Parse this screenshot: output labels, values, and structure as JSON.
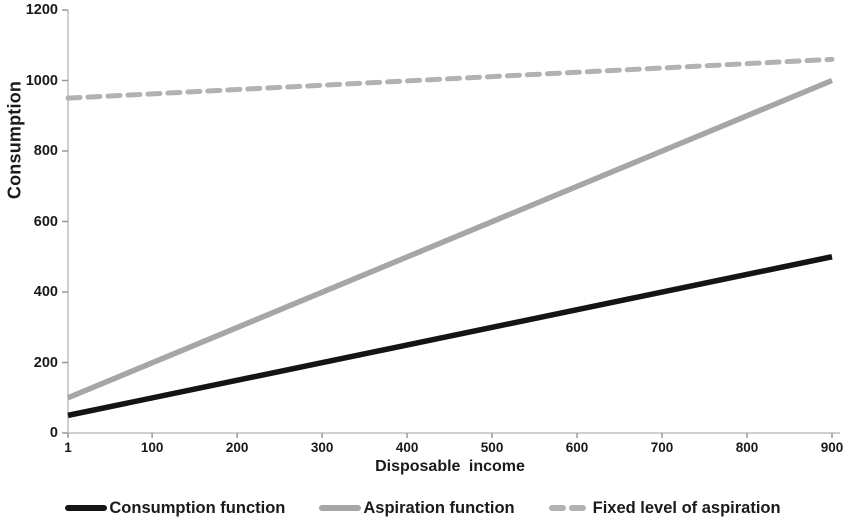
{
  "chart_data": {
    "type": "line",
    "title": "",
    "xlabel": "Disposable income",
    "ylabel": "Consumption",
    "xlim": [
      1,
      900
    ],
    "ylim": [
      0,
      1200
    ],
    "x_ticks": [
      1,
      100,
      200,
      300,
      400,
      500,
      600,
      700,
      800,
      900
    ],
    "y_ticks": [
      0,
      200,
      400,
      600,
      800,
      1000,
      1200
    ],
    "grid": false,
    "legend_position": "bottom",
    "axis_color": "#bfbfbf",
    "tick_color": "#999999",
    "series": [
      {
        "name": "Consumption function",
        "style": "solid",
        "color": "#141414",
        "width": 5.5,
        "points": [
          [
            1,
            50
          ],
          [
            900,
            500
          ]
        ]
      },
      {
        "name": "Aspiration function",
        "style": "solid",
        "color": "#a6a6a6",
        "width": 5.5,
        "points": [
          [
            1,
            100
          ],
          [
            900,
            1000
          ]
        ]
      },
      {
        "name": "Fixed level of aspiration",
        "style": "dashed",
        "color": "#b2b2b2",
        "width": 5,
        "points": [
          [
            1,
            950
          ],
          [
            900,
            1060
          ]
        ]
      }
    ]
  }
}
